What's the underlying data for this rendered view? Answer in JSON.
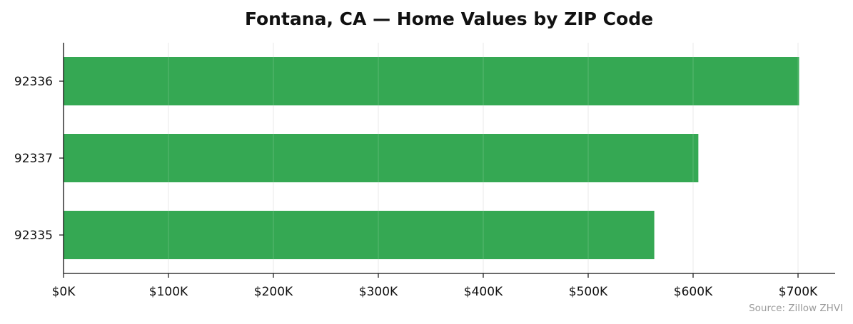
{
  "chart_data": {
    "type": "bar",
    "orientation": "horizontal",
    "title": "Fontana, CA — Home Values by ZIP Code",
    "xlabel": "",
    "ylabel": "",
    "categories": [
      "92336",
      "92337",
      "92335"
    ],
    "values": [
      701000,
      605000,
      563000
    ],
    "xlim": [
      0,
      735000
    ],
    "x_ticks": [
      0,
      100000,
      200000,
      300000,
      400000,
      500000,
      600000,
      700000
    ],
    "x_tick_labels": [
      "$0K",
      "$100K",
      "$200K",
      "$300K",
      "$400K",
      "$500K",
      "$600K",
      "$700K"
    ],
    "grid": "vertical",
    "bar_color": "#35a853",
    "source": "Source: Zillow ZHVI"
  }
}
